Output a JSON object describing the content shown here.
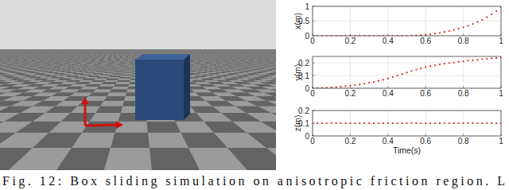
{
  "caption": "Fig. 12: Box sliding simulation on anisotropic friction region. L",
  "chart_data": [
    {
      "type": "scatter",
      "ylabel": "x(m)",
      "color": "#d42020",
      "marker": "dot",
      "grid": true,
      "xlim": [
        0,
        1
      ],
      "xticks": [
        0,
        0.2,
        0.4,
        0.6,
        0.8,
        1
      ],
      "ylim": [
        0,
        1
      ],
      "yticks": [
        0,
        0.5,
        1
      ],
      "x": [
        0,
        0.025,
        0.05,
        0.075,
        0.1,
        0.125,
        0.15,
        0.175,
        0.2,
        0.225,
        0.25,
        0.275,
        0.3,
        0.325,
        0.35,
        0.375,
        0.4,
        0.425,
        0.45,
        0.475,
        0.5,
        0.525,
        0.55,
        0.575,
        0.6,
        0.625,
        0.65,
        0.675,
        0.7,
        0.725,
        0.75,
        0.775,
        0.8,
        0.825,
        0.85,
        0.875,
        0.9,
        0.925,
        0.95,
        0.975,
        1
      ],
      "values": [
        0,
        0,
        0,
        0,
        0,
        0,
        0,
        0,
        0,
        0,
        0,
        0,
        0,
        0,
        0,
        0,
        0,
        0,
        0,
        0,
        0,
        0.005,
        0.01,
        0.02,
        0.03,
        0.05,
        0.07,
        0.1,
        0.13,
        0.16,
        0.2,
        0.24,
        0.29,
        0.34,
        0.4,
        0.47,
        0.54,
        0.63,
        0.73,
        0.84,
        0.97
      ]
    },
    {
      "type": "scatter",
      "ylabel": "y(m)",
      "color": "#d42020",
      "marker": "dot",
      "grid": true,
      "xlim": [
        0,
        1
      ],
      "xticks": [
        0,
        0.2,
        0.4,
        0.6,
        0.8,
        1
      ],
      "ylim": [
        0,
        0.25
      ],
      "yticks": [
        0,
        0.1,
        0.2
      ],
      "x": [
        0,
        0.025,
        0.05,
        0.075,
        0.1,
        0.125,
        0.15,
        0.175,
        0.2,
        0.225,
        0.25,
        0.275,
        0.3,
        0.325,
        0.35,
        0.375,
        0.4,
        0.425,
        0.45,
        0.475,
        0.5,
        0.525,
        0.55,
        0.575,
        0.6,
        0.625,
        0.65,
        0.675,
        0.7,
        0.725,
        0.75,
        0.775,
        0.8,
        0.825,
        0.85,
        0.875,
        0.9,
        0.925,
        0.95,
        0.975,
        1
      ],
      "values": [
        0,
        0.001,
        0.002,
        0.004,
        0.006,
        0.009,
        0.012,
        0.016,
        0.02,
        0.025,
        0.03,
        0.036,
        0.043,
        0.05,
        0.058,
        0.067,
        0.077,
        0.088,
        0.1,
        0.112,
        0.124,
        0.136,
        0.147,
        0.157,
        0.166,
        0.174,
        0.181,
        0.187,
        0.193,
        0.198,
        0.203,
        0.208,
        0.212,
        0.216,
        0.22,
        0.224,
        0.228,
        0.231,
        0.235,
        0.238,
        0.242
      ]
    },
    {
      "type": "scatter",
      "ylabel": "z(m)",
      "xlabel": "Time(s)",
      "color": "#d42020",
      "marker": "dot",
      "grid": true,
      "xlim": [
        0,
        1
      ],
      "xticks": [
        0,
        0.2,
        0.4,
        0.6,
        0.8,
        1
      ],
      "ylim": [
        0,
        0.2
      ],
      "yticks": [
        0,
        0.1,
        0.2
      ],
      "x": [
        0,
        0.025,
        0.05,
        0.075,
        0.1,
        0.125,
        0.15,
        0.175,
        0.2,
        0.225,
        0.25,
        0.275,
        0.3,
        0.325,
        0.35,
        0.375,
        0.4,
        0.425,
        0.45,
        0.475,
        0.5,
        0.525,
        0.55,
        0.575,
        0.6,
        0.625,
        0.65,
        0.675,
        0.7,
        0.725,
        0.75,
        0.775,
        0.8,
        0.825,
        0.85,
        0.875,
        0.9,
        0.925,
        0.95,
        0.975,
        1
      ],
      "values": [
        0.1,
        0.1,
        0.1,
        0.1,
        0.1,
        0.1,
        0.1,
        0.1,
        0.1,
        0.1,
        0.1,
        0.1,
        0.1,
        0.1,
        0.1,
        0.1,
        0.1,
        0.1,
        0.1,
        0.1,
        0.1,
        0.1,
        0.1,
        0.1,
        0.1,
        0.1,
        0.1,
        0.1,
        0.1,
        0.1,
        0.1,
        0.1,
        0.1,
        0.1,
        0.1,
        0.1,
        0.1,
        0.1,
        0.1,
        0.1,
        0.1
      ]
    }
  ]
}
